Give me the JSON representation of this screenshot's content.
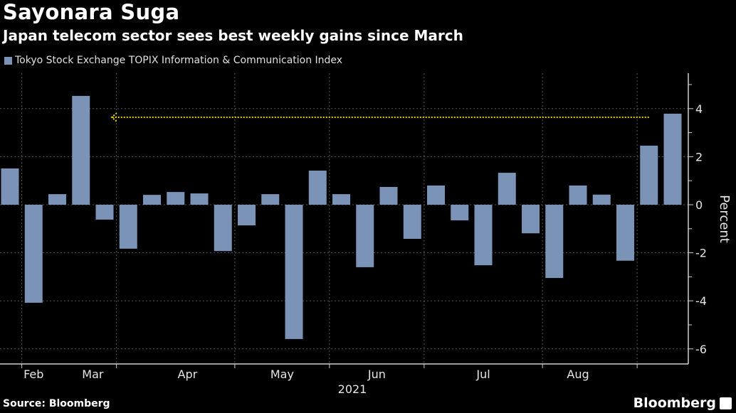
{
  "header": {
    "title": "Sayonara Suga",
    "subtitle": "Japan telecom sector sees best weekly gains since March"
  },
  "footer": {
    "source": "Source: Bloomberg",
    "brand": "Bloomberg"
  },
  "colors": {
    "bar": "#7b93b7",
    "annotation": "#e8d000",
    "grid": "#555555",
    "background": "#000000"
  },
  "chart_data": {
    "type": "bar",
    "title": "Sayonara Suga",
    "subtitle": "Japan telecom sector sees best weekly gains since March",
    "legend": [
      "Tokyo Stock Exchange TOPIX Information & Communication Index"
    ],
    "legend_position": "top-left",
    "xlabel": "2021",
    "ylabel": "Percent",
    "y_axis_side": "right",
    "ylim": [
      -6.5,
      5.5
    ],
    "yticks": [
      4,
      2,
      0,
      -2,
      -4,
      -6
    ],
    "grid": true,
    "month_labels": [
      "Feb",
      "Mar",
      "Apr",
      "May",
      "Jun",
      "Jul",
      "Aug"
    ],
    "month_label_bar_index": [
      1,
      3.5,
      7.5,
      11.5,
      15.5,
      20,
      24
    ],
    "month_separator_after_bar": [
      0.5,
      4.5,
      9.5,
      13.5,
      17.5,
      22.5,
      26.5
    ],
    "series": [
      {
        "name": "Tokyo Stock Exchange TOPIX Information & Communication Index",
        "values": [
          1.51,
          -4.08,
          0.44,
          4.53,
          -0.62,
          -1.83,
          0.41,
          0.53,
          0.47,
          -1.93,
          -0.86,
          0.44,
          -5.59,
          1.42,
          0.44,
          -2.6,
          0.74,
          -1.42,
          0.8,
          -0.65,
          -2.52,
          1.33,
          -1.19,
          -3.05,
          0.8,
          0.42,
          -2.33,
          2.46,
          3.79
        ]
      }
    ],
    "annotations": [
      {
        "type": "arrow",
        "y": 3.64,
        "from_bar_index": 27,
        "to_bar_index": 4.3,
        "description": "dotted yellow arrow pointing left from latest week to March peak"
      }
    ]
  }
}
